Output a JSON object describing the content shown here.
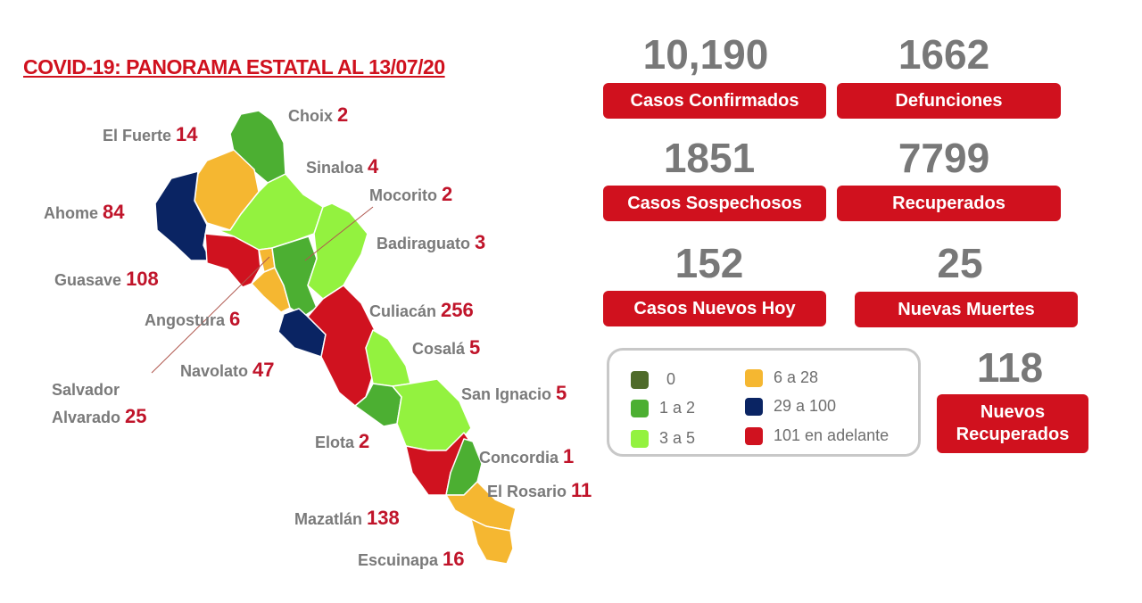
{
  "title": "COVID-19: PANORAMA ESTATAL AL 13/07/20",
  "colors": {
    "cat0": "#4f6b2a",
    "cat1": "#4caf32",
    "cat2": "#93f23f",
    "cat3": "#f5b731",
    "cat4": "#0a2463",
    "cat5": "#d0121f",
    "accent": "#d0111e"
  },
  "stats": [
    {
      "value": "10,190",
      "label": "Casos Confirmados"
    },
    {
      "value": "1662",
      "label": "Defunciones"
    },
    {
      "value": "1851",
      "label": "Casos Sospechosos"
    },
    {
      "value": "7799",
      "label": "Recuperados"
    },
    {
      "value": "152",
      "label": "Casos Nuevos Hoy"
    },
    {
      "value": "25",
      "label": "Nuevas Muertes"
    },
    {
      "value": "118",
      "label": "Nuevos Recuperados"
    }
  ],
  "legend": [
    "0",
    "1 a 2",
    "3 a 5",
    "6 a 28",
    "29 a 100",
    "101 en adelante"
  ],
  "municipalities": [
    {
      "name": "Choix",
      "cases": "2",
      "category": "cat1"
    },
    {
      "name": "El Fuerte",
      "cases": "14",
      "category": "cat3"
    },
    {
      "name": "Sinaloa",
      "cases": "4",
      "category": "cat2"
    },
    {
      "name": "Ahome",
      "cases": "84",
      "category": "cat4"
    },
    {
      "name": "Mocorito",
      "cases": "2",
      "category": "cat1"
    },
    {
      "name": "Badiraguato",
      "cases": "3",
      "category": "cat2"
    },
    {
      "name": "Guasave",
      "cases": "108",
      "category": "cat5"
    },
    {
      "name": "Angostura",
      "cases": "6",
      "category": "cat3"
    },
    {
      "name": "Culiacán",
      "cases": "256",
      "category": "cat5"
    },
    {
      "name": "Cosalá",
      "cases": "5",
      "category": "cat2"
    },
    {
      "name": "Navolato",
      "cases": "47",
      "category": "cat4"
    },
    {
      "name": "Salvador Alvarado",
      "cases": "25",
      "category": "cat3"
    },
    {
      "name": "San Ignacio",
      "cases": "5",
      "category": "cat2"
    },
    {
      "name": "Elota",
      "cases": "2",
      "category": "cat1"
    },
    {
      "name": "Concordia",
      "cases": "1",
      "category": "cat1"
    },
    {
      "name": "El Rosario",
      "cases": "11",
      "category": "cat3"
    },
    {
      "name": "Mazatlán",
      "cases": "138",
      "category": "cat5"
    },
    {
      "name": "Escuinapa",
      "cases": "16",
      "category": "cat3"
    }
  ]
}
